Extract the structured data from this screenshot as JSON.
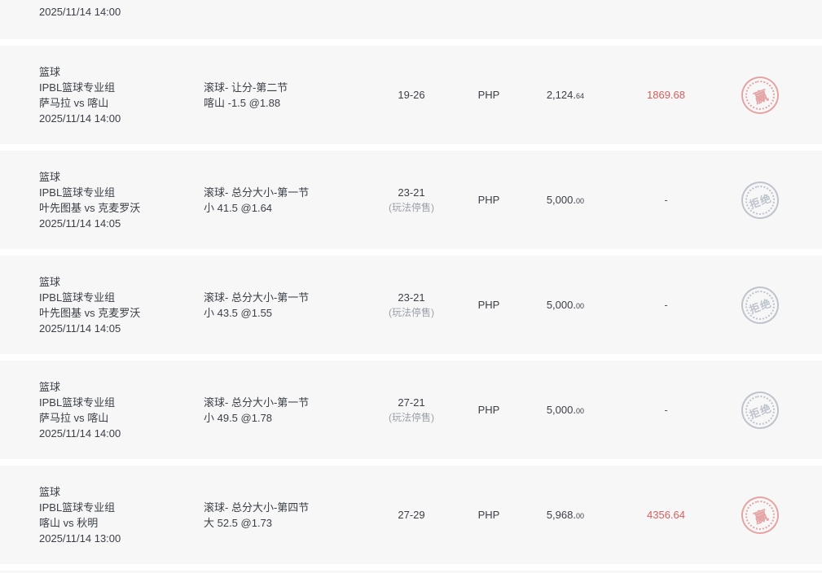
{
  "colors": {
    "page_background": "#ffffff",
    "row_background": "#f7f7f8",
    "text_primary": "#3b4046",
    "text_muted": "#9aa1a8",
    "win_red": "#d65f5f",
    "stamp_red": "#e39c9c",
    "stamp_gray": "#b8bfc8"
  },
  "top_partial_row": {
    "datetime": "2025/11/14 14:00"
  },
  "rows": [
    {
      "sport": "篮球",
      "league": "IPBL篮球专业组",
      "teams": "萨马拉 vs 喀山",
      "datetime": "2025/11/14 14:00",
      "bet_type": "滚球- 让分-第二节",
      "bet_selection": "喀山 -1.5 @1.88",
      "score": "19-26",
      "score_note": "",
      "currency": "PHP",
      "amount_main": "2,124.",
      "amount_dec": "64",
      "win_loss": "1869.68",
      "win_loss_red": true,
      "stamp": {
        "type": "win",
        "text": "赢"
      }
    },
    {
      "sport": "篮球",
      "league": "IPBL篮球专业组",
      "teams": "叶先图基 vs 克麦罗沃",
      "datetime": "2025/11/14 14:05",
      "bet_type": "滚球- 总分大小-第一节",
      "bet_selection": "小 41.5 @1.64",
      "score": "23-21",
      "score_note": "(玩法停售)",
      "currency": "PHP",
      "amount_main": "5,000.",
      "amount_dec": "00",
      "win_loss": "-",
      "win_loss_red": false,
      "stamp": {
        "type": "rejected",
        "text": "拒绝"
      }
    },
    {
      "sport": "篮球",
      "league": "IPBL篮球专业组",
      "teams": "叶先图基 vs 克麦罗沃",
      "datetime": "2025/11/14 14:05",
      "bet_type": "滚球- 总分大小-第一节",
      "bet_selection": "小 43.5 @1.55",
      "score": "23-21",
      "score_note": "(玩法停售)",
      "currency": "PHP",
      "amount_main": "5,000.",
      "amount_dec": "00",
      "win_loss": "-",
      "win_loss_red": false,
      "stamp": {
        "type": "rejected",
        "text": "拒绝"
      }
    },
    {
      "sport": "篮球",
      "league": "IPBL篮球专业组",
      "teams": "萨马拉 vs 喀山",
      "datetime": "2025/11/14 14:00",
      "bet_type": "滚球- 总分大小-第一节",
      "bet_selection": "小 49.5 @1.78",
      "score": "27-21",
      "score_note": "(玩法停售)",
      "currency": "PHP",
      "amount_main": "5,000.",
      "amount_dec": "00",
      "win_loss": "-",
      "win_loss_red": false,
      "stamp": {
        "type": "rejected",
        "text": "拒绝"
      }
    },
    {
      "sport": "篮球",
      "league": "IPBL篮球专业组",
      "teams": "喀山 vs 秋明",
      "datetime": "2025/11/14 13:00",
      "bet_type": "滚球- 总分大小-第四节",
      "bet_selection": "大 52.5 @1.73",
      "score": "27-29",
      "score_note": "",
      "currency": "PHP",
      "amount_main": "5,968.",
      "amount_dec": "00",
      "win_loss": "4356.64",
      "win_loss_red": true,
      "stamp": {
        "type": "win",
        "text": "赢"
      }
    }
  ]
}
